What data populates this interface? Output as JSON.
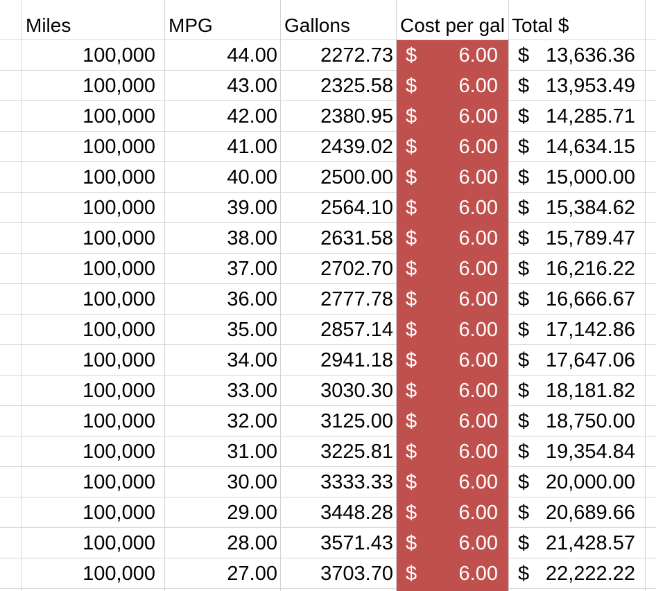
{
  "headers": {
    "miles": "Miles",
    "mpg": "MPG",
    "gallons": "Gallons",
    "cost_per_gal": "Cost per gal",
    "total": "Total $"
  },
  "currency_symbol": "$",
  "highlight_color": "#c0504d",
  "rows": [
    {
      "miles": "100,000",
      "mpg": "44.00",
      "gallons": "2272.73",
      "cost": "6.00",
      "total": "13,636.36"
    },
    {
      "miles": "100,000",
      "mpg": "43.00",
      "gallons": "2325.58",
      "cost": "6.00",
      "total": "13,953.49"
    },
    {
      "miles": "100,000",
      "mpg": "42.00",
      "gallons": "2380.95",
      "cost": "6.00",
      "total": "14,285.71"
    },
    {
      "miles": "100,000",
      "mpg": "41.00",
      "gallons": "2439.02",
      "cost": "6.00",
      "total": "14,634.15"
    },
    {
      "miles": "100,000",
      "mpg": "40.00",
      "gallons": "2500.00",
      "cost": "6.00",
      "total": "15,000.00"
    },
    {
      "miles": "100,000",
      "mpg": "39.00",
      "gallons": "2564.10",
      "cost": "6.00",
      "total": "15,384.62"
    },
    {
      "miles": "100,000",
      "mpg": "38.00",
      "gallons": "2631.58",
      "cost": "6.00",
      "total": "15,789.47"
    },
    {
      "miles": "100,000",
      "mpg": "37.00",
      "gallons": "2702.70",
      "cost": "6.00",
      "total": "16,216.22"
    },
    {
      "miles": "100,000",
      "mpg": "36.00",
      "gallons": "2777.78",
      "cost": "6.00",
      "total": "16,666.67"
    },
    {
      "miles": "100,000",
      "mpg": "35.00",
      "gallons": "2857.14",
      "cost": "6.00",
      "total": "17,142.86"
    },
    {
      "miles": "100,000",
      "mpg": "34.00",
      "gallons": "2941.18",
      "cost": "6.00",
      "total": "17,647.06"
    },
    {
      "miles": "100,000",
      "mpg": "33.00",
      "gallons": "3030.30",
      "cost": "6.00",
      "total": "18,181.82"
    },
    {
      "miles": "100,000",
      "mpg": "32.00",
      "gallons": "3125.00",
      "cost": "6.00",
      "total": "18,750.00"
    },
    {
      "miles": "100,000",
      "mpg": "31.00",
      "gallons": "3225.81",
      "cost": "6.00",
      "total": "19,354.84"
    },
    {
      "miles": "100,000",
      "mpg": "30.00",
      "gallons": "3333.33",
      "cost": "6.00",
      "total": "20,000.00"
    },
    {
      "miles": "100,000",
      "mpg": "29.00",
      "gallons": "3448.28",
      "cost": "6.00",
      "total": "20,689.66"
    },
    {
      "miles": "100,000",
      "mpg": "28.00",
      "gallons": "3571.43",
      "cost": "6.00",
      "total": "21,428.57"
    },
    {
      "miles": "100,000",
      "mpg": "27.00",
      "gallons": "3703.70",
      "cost": "6.00",
      "total": "22,222.22"
    }
  ]
}
